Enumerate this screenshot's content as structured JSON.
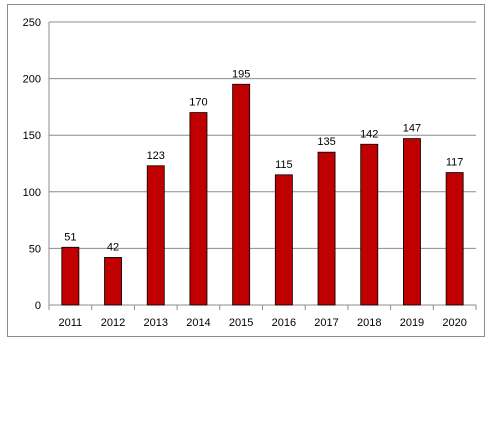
{
  "chart_data": {
    "type": "bar",
    "categories": [
      "2011",
      "2012",
      "2013",
      "2014",
      "2015",
      "2016",
      "2017",
      "2018",
      "2019",
      "2020"
    ],
    "values": [
      51,
      42,
      123,
      170,
      195,
      115,
      135,
      142,
      147,
      117
    ],
    "ylim": [
      0,
      250
    ],
    "yticks": [
      0,
      50,
      100,
      150,
      200,
      250
    ],
    "grid": true,
    "legend": "none",
    "data_labels": true,
    "bar_color": "#c00000",
    "bar_edge_color": "#000000",
    "grid_color": "#8c8c8c"
  }
}
